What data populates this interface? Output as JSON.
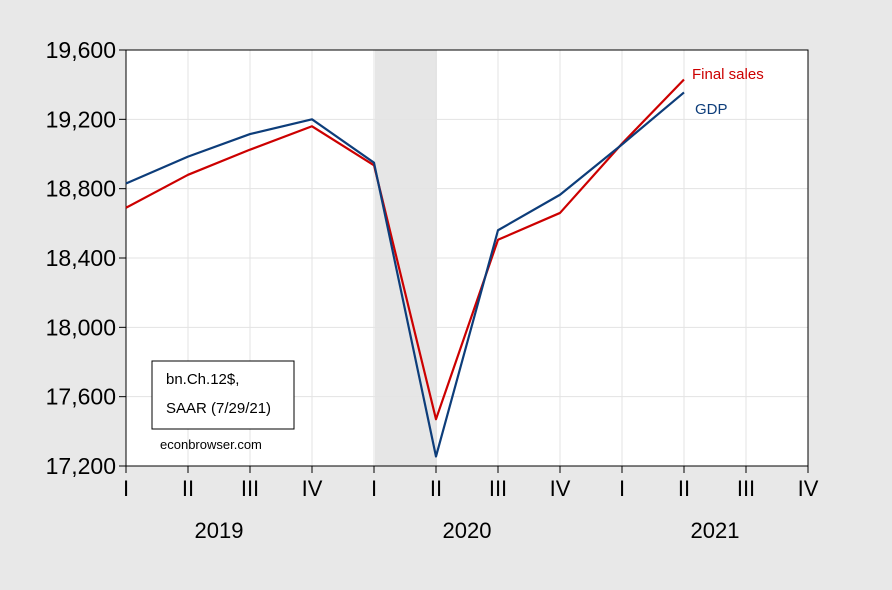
{
  "chart_data": {
    "type": "line",
    "x": [
      "2019Q1",
      "2019Q2",
      "2019Q3",
      "2019Q4",
      "2020Q1",
      "2020Q2",
      "2020Q3",
      "2020Q4",
      "2021Q1",
      "2021Q2"
    ],
    "x_ticks": [
      "I",
      "II",
      "III",
      "IV",
      "I",
      "II",
      "III",
      "IV",
      "I",
      "II",
      "III",
      "IV"
    ],
    "year_labels": [
      "2019",
      "2020",
      "2021"
    ],
    "series": [
      {
        "name": "Final sales",
        "color": "#cc0000",
        "values": [
          18690,
          18880,
          19025,
          19160,
          18935,
          17470,
          18505,
          18660,
          19060,
          19430
        ]
      },
      {
        "name": "GDP",
        "color": "#0d3d7a",
        "values": [
          18830,
          18985,
          19115,
          19200,
          18950,
          17255,
          18560,
          18765,
          19055,
          19355
        ]
      }
    ],
    "ylim": [
      17200,
      19600
    ],
    "y_ticks": [
      "17,200",
      "17,600",
      "18,000",
      "18,400",
      "18,800",
      "19,200",
      "19,600"
    ],
    "shaded_region": {
      "from": "2020Q1",
      "to": "2020Q2",
      "color": "#e6e6e6"
    },
    "annotation_lines": [
      "bn.Ch.12$,",
      "SAAR (7/29/21)"
    ],
    "source_note": "econbrowser.com",
    "grid": true
  }
}
